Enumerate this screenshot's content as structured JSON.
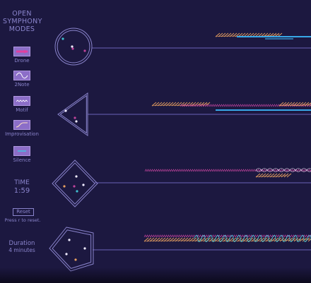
{
  "app": {
    "title_lines": [
      "OPEN",
      "SYMPHONY",
      "MODES"
    ]
  },
  "modes": [
    {
      "label": "Drone",
      "icon": "drone-icon"
    },
    {
      "label": "2Note",
      "icon": "two-note-icon"
    },
    {
      "label": "Motif",
      "icon": "motif-icon"
    },
    {
      "label": "Improvisation",
      "icon": "improvisation-icon"
    },
    {
      "label": "Silence",
      "icon": "silence-icon"
    }
  ],
  "time": {
    "label": "TIME",
    "value": "1:59"
  },
  "reset": {
    "button_label": "Reset",
    "hint": "Press r to reset."
  },
  "duration": {
    "label": "Duration",
    "value": "4 minutes"
  },
  "colors": {
    "background": "#1c1840",
    "text": "#8a84cc",
    "lane_line": "#6a62b8",
    "orange": "#e8a060",
    "blue": "#38a8e8",
    "magenta": "#c0449c",
    "cyan": "#40c0d0",
    "white": "#f0ecff"
  },
  "stations": [
    {
      "shape": "circle",
      "players": [
        "cyan",
        "white",
        "magenta",
        "magenta"
      ]
    },
    {
      "shape": "triangle",
      "players": [
        "white",
        "white",
        "magenta"
      ]
    },
    {
      "shape": "diamond",
      "players": [
        "white",
        "orange",
        "magenta",
        "cyan",
        "white"
      ]
    },
    {
      "shape": "pentagon",
      "players": [
        "white",
        "white",
        "orange",
        "white"
      ]
    }
  ]
}
